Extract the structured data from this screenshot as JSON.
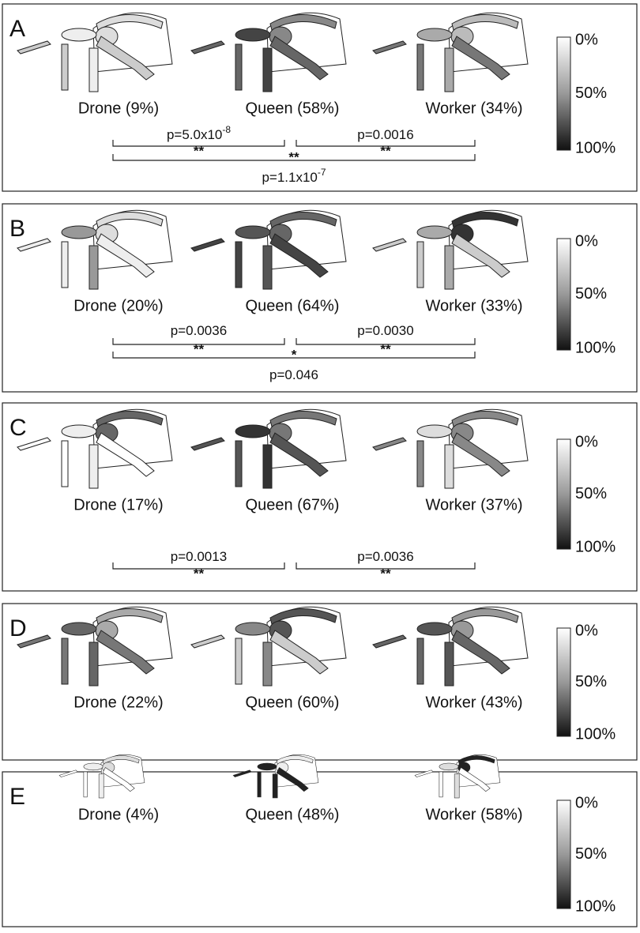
{
  "panels": [
    {
      "letter": "A",
      "castes": [
        "Drone (9%)",
        "Queen (58%)",
        "Worker (34%)"
      ],
      "colorbar": [
        "0%",
        "50%",
        "100%"
      ],
      "comparisons": {
        "left": {
          "p": "p=5.0x10",
          "exp": "-8",
          "stars": "**"
        },
        "right": {
          "p": "p=0.0016",
          "stars": "**"
        },
        "full": {
          "p": "p=1.1x10",
          "exp": "-7",
          "stars": "**"
        }
      }
    },
    {
      "letter": "B",
      "castes": [
        "Drone (20%)",
        "Queen (64%)",
        "Worker (33%)"
      ],
      "colorbar": [
        "0%",
        "50%",
        "100%"
      ],
      "comparisons": {
        "left": {
          "p": "p=0.0036",
          "stars": "**"
        },
        "right": {
          "p": "p=0.0030",
          "stars": "**"
        },
        "full": {
          "p": "p=0.046",
          "stars": "*"
        }
      }
    },
    {
      "letter": "C",
      "castes": [
        "Drone (17%)",
        "Queen (67%)",
        "Worker (37%)"
      ],
      "colorbar": [
        "0%",
        "50%",
        "100%"
      ],
      "comparisons": {
        "left": {
          "p": "p=0.0013",
          "stars": "**"
        },
        "right": {
          "p": "p=0.0036",
          "stars": "**"
        }
      }
    },
    {
      "letter": "D",
      "castes": [
        "Drone (22%)",
        "Queen (60%)",
        "Worker (43%)"
      ],
      "colorbar": [
        "0%",
        "50%",
        "100%"
      ]
    },
    {
      "letter": "E",
      "castes": [
        "Drone (4%)",
        "Queen (48%)",
        "Worker (58%)"
      ],
      "colorbar": [
        "0%",
        "50%",
        "100%"
      ]
    }
  ]
}
